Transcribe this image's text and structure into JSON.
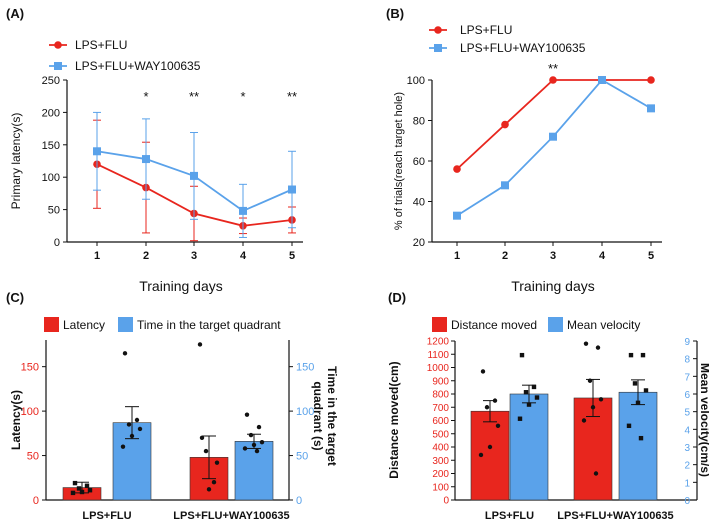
{
  "colors": {
    "red": "#e8261e",
    "blue": "#5aa2ea",
    "black": "#111111"
  },
  "chart_data": [
    {
      "panel": "(A)",
      "type": "line",
      "x": [
        1,
        2,
        3,
        4,
        5
      ],
      "xticks": [
        "1",
        "2",
        "3",
        "4",
        "5"
      ],
      "xlabel": "Training days",
      "ylabel": "Primary latency(s)",
      "ylim": [
        0,
        250
      ],
      "yticks": [
        "0",
        "50",
        "100",
        "150",
        "200",
        "250"
      ],
      "legend": [
        "LPS+FLU",
        "LPS+FLU+WAY100635"
      ],
      "series": [
        {
          "name": "LPS+FLU",
          "values": [
            120,
            84,
            44,
            25,
            34
          ],
          "err": [
            68,
            70,
            42,
            12,
            20
          ]
        },
        {
          "name": "LPS+FLU+WAY100635",
          "values": [
            140,
            128,
            102,
            48,
            81
          ],
          "err": [
            60,
            62,
            67,
            41,
            59
          ]
        }
      ],
      "significance": [
        {
          "x": 2,
          "label": "*"
        },
        {
          "x": 3,
          "label": "**"
        },
        {
          "x": 4,
          "label": "*"
        },
        {
          "x": 5,
          "label": "**"
        }
      ]
    },
    {
      "panel": "(B)",
      "type": "line",
      "x": [
        1,
        2,
        3,
        4,
        5
      ],
      "xticks": [
        "1",
        "2",
        "3",
        "4",
        "5"
      ],
      "xlabel": "Training days",
      "ylabel": "% of trials(reach  target hole)",
      "ylim": [
        20,
        100
      ],
      "yticks": [
        "20",
        "40",
        "60",
        "80",
        "100"
      ],
      "legend": [
        "LPS+FLU",
        "LPS+FLU+WAY100635"
      ],
      "series": [
        {
          "name": "LPS+FLU",
          "values": [
            56,
            78,
            100,
            100,
            100
          ]
        },
        {
          "name": "LPS+FLU+WAY100635",
          "values": [
            33,
            48,
            72,
            100,
            86
          ]
        }
      ],
      "significance": [
        {
          "x": 3,
          "label": "**"
        }
      ]
    },
    {
      "panel": "(C)",
      "type": "bar",
      "categories": [
        "LPS+FLU",
        "LPS+FLU+WAY100635"
      ],
      "legend": [
        "Latency",
        "Time in the target quadrant"
      ],
      "ylabel_left": "Latency(s)",
      "ylabel_right": "Time in the target quadrant (s)",
      "ylim": [
        0,
        180
      ],
      "yticks": [
        "0",
        "50",
        "100",
        "150"
      ],
      "series": [
        {
          "name": "Latency",
          "values": [
            14,
            48
          ],
          "err": [
            6,
            24
          ],
          "points": [
            [
              19,
              16,
              13,
              11,
              9,
              8
            ],
            [
              70,
              20,
              55,
              42,
              12,
              175
            ]
          ]
        },
        {
          "name": "Time in the target quadrant",
          "values": [
            87,
            66
          ],
          "err": [
            18,
            8
          ],
          "points": [
            [
              165,
              90,
              85,
              80,
              72,
              60
            ],
            [
              96,
              82,
              73,
              65,
              62,
              58,
              55
            ]
          ]
        }
      ]
    },
    {
      "panel": "(D)",
      "type": "bar",
      "categories": [
        "LPS+FLU",
        "LPS+FLU+WAY100635"
      ],
      "legend": [
        "Distance moved",
        "Mean velocity"
      ],
      "ylabel_left": "Distance moved(cm)",
      "ylabel_right": "Mean velocity(cm/s)",
      "ylim_left": [
        0,
        1200
      ],
      "yticks_left": [
        "0",
        "100",
        "200",
        "300",
        "400",
        "500",
        "600",
        "700",
        "800",
        "900",
        "1000",
        "1100",
        "1200"
      ],
      "ylim_right": [
        0,
        9
      ],
      "yticks_right": [
        "0",
        "1",
        "2",
        "3",
        "4",
        "5",
        "6",
        "7",
        "8",
        "9"
      ],
      "series": [
        {
          "name": "Distance moved",
          "values": [
            670,
            770
          ],
          "err": [
            80,
            140
          ],
          "points": [
            [
              970,
              750,
              700,
              560,
              400,
              340
            ],
            [
              1180,
              1150,
              900,
              760,
              700,
              600,
              200
            ]
          ]
        },
        {
          "name": "Mean velocity",
          "values": [
            6.0,
            6.1
          ],
          "err": [
            0.5,
            0.7
          ],
          "points": [
            [
              8.2,
              6.4,
              6.1,
              5.8,
              5.4,
              4.6
            ],
            [
              8.2,
              8.2,
              6.6,
              6.2,
              5.5,
              4.2,
              3.5
            ]
          ]
        }
      ]
    }
  ]
}
